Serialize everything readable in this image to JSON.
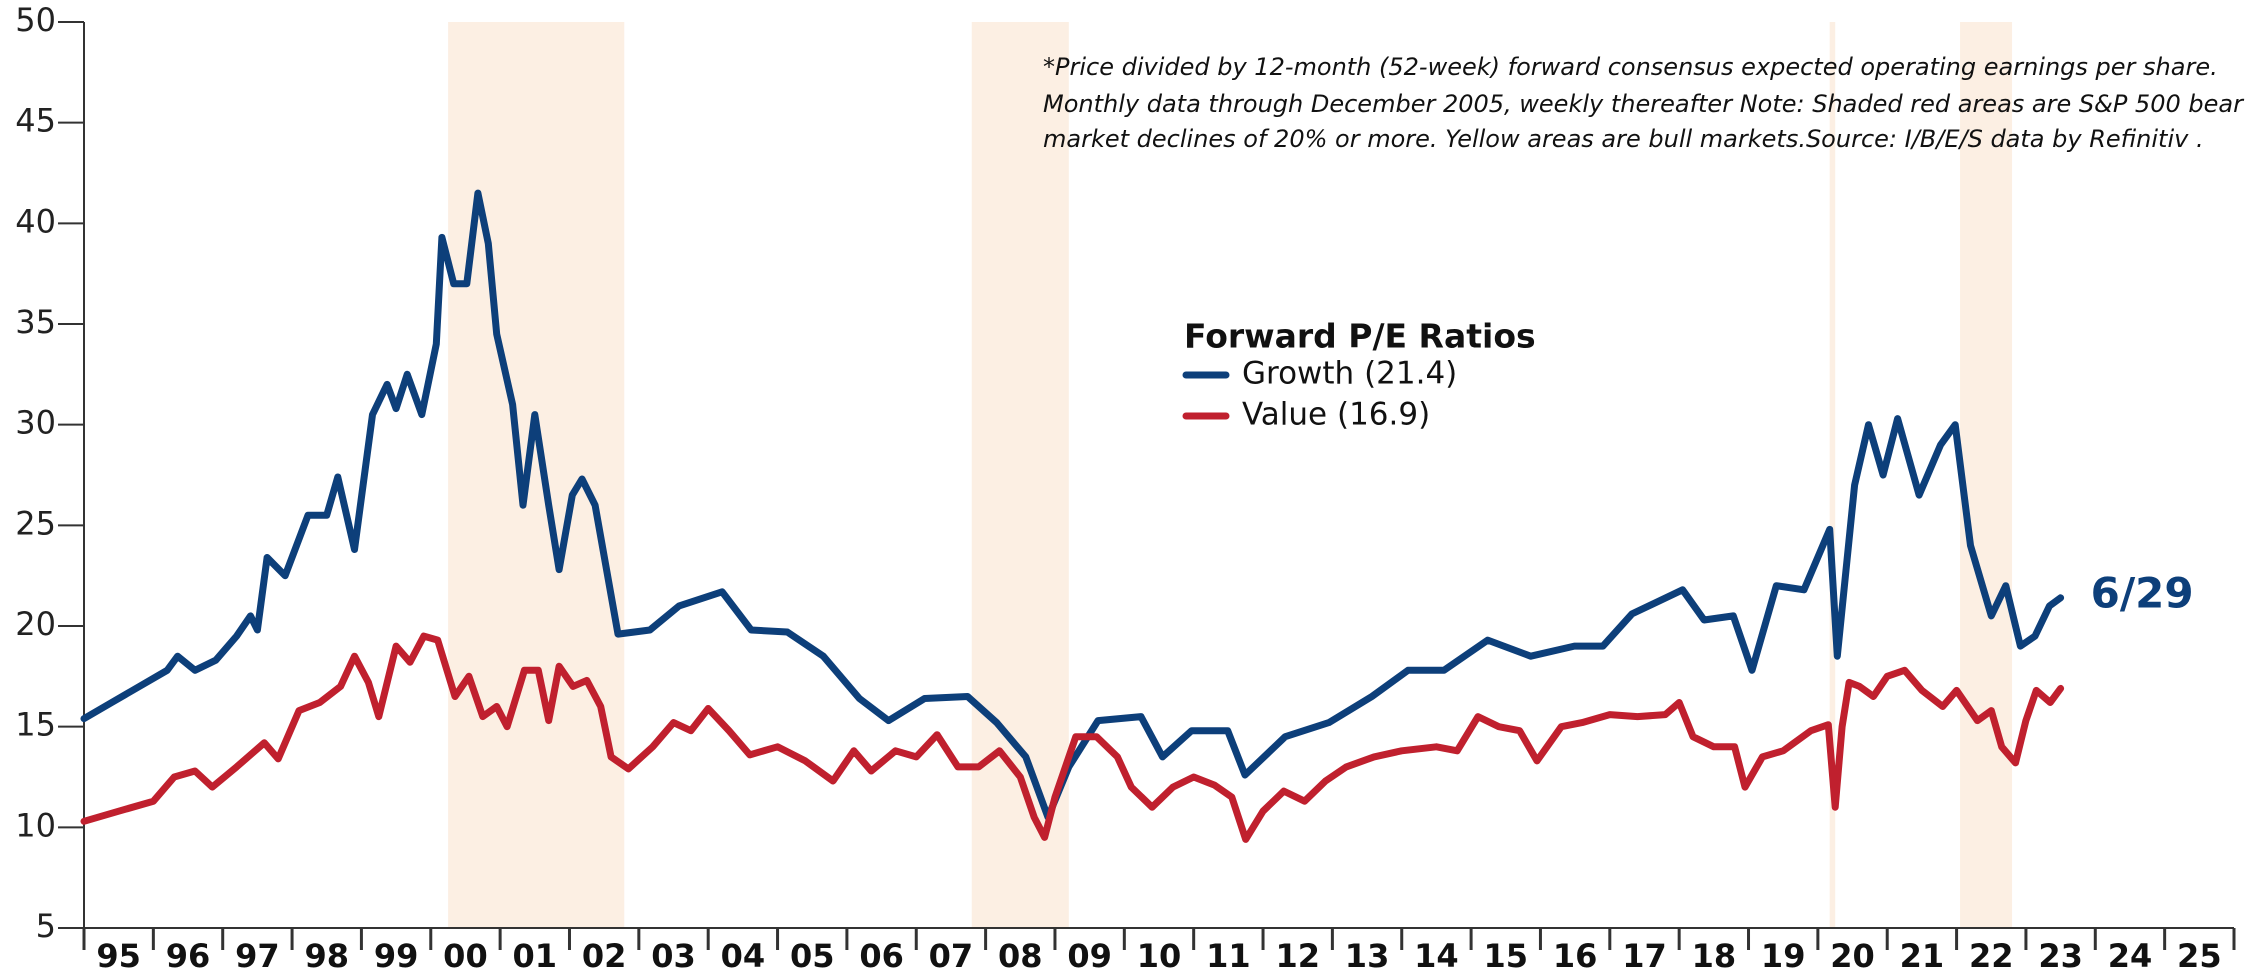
{
  "chart_data": {
    "type": "line",
    "legend_title": "Forward P/E Ratios",
    "annotations": [
      "*Price divided by 12-month (52-week) forward consensus expected operating earnings per share.",
      "Monthly data through December 2005, weekly  thereafter Note: Shaded red areas are S&P 500 bear",
      "market declines of  20% or more. Yellow areas are bull markets.Source: I/B/E/S data by Refinitiv ."
    ],
    "end_label": "6/29",
    "xlim": [
      1995,
      2026
    ],
    "ylim": [
      5,
      50
    ],
    "yticks": [
      5,
      10,
      15,
      20,
      25,
      30,
      35,
      40,
      45,
      50
    ],
    "xticks": [
      {
        "value": 1995.5,
        "label": "95"
      },
      {
        "value": 1996.5,
        "label": "96"
      },
      {
        "value": 1997.5,
        "label": "97"
      },
      {
        "value": 1998.5,
        "label": "98"
      },
      {
        "value": 1999.5,
        "label": "99"
      },
      {
        "value": 2000.5,
        "label": "00"
      },
      {
        "value": 2001.5,
        "label": "01"
      },
      {
        "value": 2002.5,
        "label": "02"
      },
      {
        "value": 2003.5,
        "label": "03"
      },
      {
        "value": 2004.5,
        "label": "04"
      },
      {
        "value": 2005.5,
        "label": "05"
      },
      {
        "value": 2006.5,
        "label": "06"
      },
      {
        "value": 2007.5,
        "label": "07"
      },
      {
        "value": 2008.5,
        "label": "08"
      },
      {
        "value": 2009.5,
        "label": "09"
      },
      {
        "value": 2010.5,
        "label": "10"
      },
      {
        "value": 2011.5,
        "label": "11"
      },
      {
        "value": 2012.5,
        "label": "12"
      },
      {
        "value": 2013.5,
        "label": "13"
      },
      {
        "value": 2014.5,
        "label": "14"
      },
      {
        "value": 2015.5,
        "label": "15"
      },
      {
        "value": 2016.5,
        "label": "16"
      },
      {
        "value": 2017.5,
        "label": "17"
      },
      {
        "value": 2018.5,
        "label": "18"
      },
      {
        "value": 2019.5,
        "label": "19"
      },
      {
        "value": 2020.5,
        "label": "20"
      },
      {
        "value": 2021.5,
        "label": "21"
      },
      {
        "value": 2022.5,
        "label": "22"
      },
      {
        "value": 2023.5,
        "label": "23"
      },
      {
        "value": 2024.5,
        "label": "24"
      },
      {
        "value": 2025.5,
        "label": "25"
      }
    ],
    "minor_xticks": [
      1995,
      1996,
      1997,
      1998,
      1999,
      2000,
      2001,
      2002,
      2003,
      2004,
      2005,
      2006,
      2007,
      2008,
      2009,
      2010,
      2011,
      2012,
      2013,
      2014,
      2015,
      2016,
      2017,
      2018,
      2019,
      2020,
      2021,
      2022,
      2023,
      2024,
      2025,
      2026
    ],
    "shaded_regions": [
      [
        2000.25,
        2002.79
      ],
      [
        2007.8,
        2009.2
      ],
      [
        2020.17,
        2020.25
      ],
      [
        2022.05,
        2022.8
      ]
    ],
    "shade_color": "#fcefe3",
    "series": [
      {
        "name": "Growth (21.4)",
        "color": "#0d3f7a",
        "x": [
          1995.0,
          1995.4,
          1995.8,
          1996.2,
          1996.35,
          1996.6,
          1996.9,
          1997.2,
          1997.4,
          1997.5,
          1997.64,
          1997.9,
          1998.23,
          1998.5,
          1998.66,
          1998.9,
          1999.16,
          1999.37,
          1999.5,
          1999.66,
          1999.87,
          2000.08,
          2000.16,
          2000.33,
          2000.52,
          2000.68,
          2000.83,
          2000.95,
          2001.18,
          2001.33,
          2001.5,
          2001.7,
          2001.85,
          2002.04,
          2002.18,
          2002.37,
          2002.7,
          2003.16,
          2003.58,
          2004.2,
          2004.62,
          2005.14,
          2005.66,
          2006.18,
          2006.6,
          2007.12,
          2007.74,
          2008.16,
          2008.58,
          2008.9,
          2009.2,
          2009.62,
          2010.24,
          2010.55,
          2010.97,
          2011.49,
          2011.74,
          2012.32,
          2012.95,
          2013.57,
          2014.09,
          2014.61,
          2015.24,
          2015.86,
          2016.49,
          2016.9,
          2017.32,
          2018.05,
          2018.36,
          2018.78,
          2019.05,
          2019.4,
          2019.8,
          2020.17,
          2020.28,
          2020.53,
          2020.73,
          2020.94,
          2021.15,
          2021.46,
          2021.77,
          2021.98,
          2022.2,
          2022.5,
          2022.71,
          2022.92,
          2023.13,
          2023.34,
          2023.5
        ],
        "values": [
          15.4,
          16.2,
          17.0,
          17.8,
          18.5,
          17.8,
          18.3,
          19.5,
          20.5,
          19.8,
          23.4,
          22.5,
          25.5,
          25.5,
          27.4,
          23.8,
          30.5,
          32,
          30.8,
          32.5,
          30.5,
          34,
          39.3,
          37,
          37,
          41.5,
          39,
          34.5,
          31,
          26,
          30.5,
          26,
          22.8,
          26.5,
          27.3,
          26,
          19.6,
          19.8,
          21,
          21.7,
          19.8,
          19.7,
          18.5,
          16.4,
          15.3,
          16.4,
          16.5,
          15.2,
          13.5,
          10.5,
          13,
          15.3,
          15.5,
          13.5,
          14.8,
          14.8,
          12.6,
          14.5,
          15.2,
          16.5,
          17.8,
          17.8,
          19.3,
          18.5,
          19,
          19,
          20.6,
          21.8,
          20.3,
          20.5,
          17.8,
          22,
          21.8,
          24.8,
          18.5,
          27,
          30,
          27.5,
          30.3,
          26.5,
          29,
          30,
          24,
          20.5,
          22,
          19,
          19.5,
          21,
          21.4
        ]
      },
      {
        "name": "Value (16.9)",
        "color": "#c0202e",
        "x": [
          1995.0,
          1995.5,
          1996.0,
          1996.3,
          1996.6,
          1996.85,
          1997.2,
          1997.6,
          1997.8,
          1998.1,
          1998.4,
          1998.7,
          1998.9,
          1999.1,
          1999.25,
          1999.5,
          1999.7,
          1999.9,
          2000.1,
          2000.35,
          2000.55,
          2000.75,
          2000.95,
          2001.1,
          2001.35,
          2001.55,
          2001.7,
          2001.85,
          2002.05,
          2002.25,
          2002.45,
          2002.6,
          2002.85,
          2003.2,
          2003.5,
          2003.75,
          2004.0,
          2004.3,
          2004.6,
          2005.0,
          2005.4,
          2005.8,
          2006.1,
          2006.35,
          2006.7,
          2007.0,
          2007.3,
          2007.6,
          2007.9,
          2008.2,
          2008.5,
          2008.7,
          2008.85,
          2009.0,
          2009.3,
          2009.6,
          2009.9,
          2010.1,
          2010.4,
          2010.7,
          2011.0,
          2011.3,
          2011.55,
          2011.75,
          2012.0,
          2012.3,
          2012.6,
          2012.9,
          2013.2,
          2013.6,
          2014.0,
          2014.5,
          2014.8,
          2015.1,
          2015.4,
          2015.7,
          2015.95,
          2016.3,
          2016.6,
          2017.0,
          2017.4,
          2017.8,
          2018.0,
          2018.2,
          2018.5,
          2018.8,
          2018.95,
          2019.2,
          2019.5,
          2019.9,
          2020.15,
          2020.25,
          2020.35,
          2020.45,
          2020.6,
          2020.8,
          2021.0,
          2021.25,
          2021.5,
          2021.8,
          2022.0,
          2022.3,
          2022.5,
          2022.65,
          2022.85,
          2023.0,
          2023.15,
          2023.35,
          2023.5
        ],
        "values": [
          10.3,
          10.8,
          11.3,
          12.5,
          12.8,
          12.0,
          13.0,
          14.2,
          13.4,
          15.8,
          16.2,
          17.0,
          18.5,
          17.2,
          15.5,
          19.0,
          18.2,
          19.5,
          19.3,
          16.5,
          17.5,
          15.5,
          16.0,
          15.0,
          17.8,
          17.8,
          15.3,
          18.0,
          17.0,
          17.3,
          16.0,
          13.5,
          12.9,
          14.0,
          15.2,
          14.8,
          15.9,
          14.8,
          13.6,
          14.0,
          13.3,
          12.3,
          13.8,
          12.8,
          13.8,
          13.5,
          14.6,
          13.0,
          13.0,
          13.8,
          12.5,
          10.5,
          9.5,
          11.5,
          14.5,
          14.5,
          13.5,
          12.0,
          11.0,
          12.0,
          12.5,
          12.1,
          11.5,
          9.4,
          10.8,
          11.8,
          11.3,
          12.3,
          13.0,
          13.5,
          13.8,
          14.0,
          13.8,
          15.5,
          15.0,
          14.8,
          13.3,
          15.0,
          15.2,
          15.6,
          15.5,
          15.6,
          16.2,
          14.5,
          14.0,
          14.0,
          12.0,
          13.5,
          13.8,
          14.8,
          15.1,
          11.0,
          15.0,
          17.2,
          17.0,
          16.5,
          17.5,
          17.8,
          16.8,
          16.0,
          16.8,
          15.3,
          15.8,
          14.0,
          13.2,
          15.3,
          16.8,
          16.2,
          16.9
        ]
      }
    ]
  }
}
